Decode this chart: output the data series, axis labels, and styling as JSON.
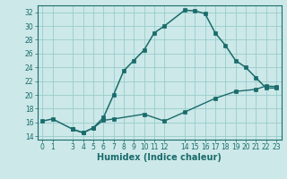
{
  "xlabel": "Humidex (Indice chaleur)",
  "bg_color": "#cce8e8",
  "line_color": "#1a6b6b",
  "grid_color": "#99cccc",
  "xlim": [
    -0.5,
    23.5
  ],
  "ylim": [
    13.5,
    33.0
  ],
  "xticks": [
    0,
    1,
    3,
    4,
    5,
    6,
    7,
    8,
    9,
    10,
    11,
    12,
    14,
    15,
    16,
    17,
    18,
    19,
    20,
    21,
    22,
    23
  ],
  "yticks": [
    14,
    16,
    18,
    20,
    22,
    24,
    26,
    28,
    30,
    32
  ],
  "curve1_x": [
    0,
    1,
    3,
    4,
    5,
    6,
    7,
    8,
    9,
    10,
    11,
    12,
    14,
    15,
    16,
    17,
    18,
    19,
    20,
    21,
    22,
    23
  ],
  "curve1_y": [
    16.2,
    16.5,
    15.0,
    14.5,
    15.2,
    16.7,
    20.0,
    23.5,
    25.0,
    26.5,
    29.0,
    30.0,
    32.3,
    32.2,
    31.8,
    29.0,
    27.2,
    25.0,
    24.0,
    22.5,
    21.0,
    21.0
  ],
  "curve2_x": [
    3,
    4,
    5,
    6,
    7,
    10,
    12,
    14,
    17,
    19,
    21,
    22,
    23
  ],
  "curve2_y": [
    15.0,
    14.5,
    15.2,
    16.3,
    16.5,
    17.2,
    16.2,
    17.5,
    19.5,
    20.5,
    20.8,
    21.3,
    21.2
  ],
  "xlabel_fontsize": 7,
  "tick_fontsize": 5.5,
  "linewidth1": 1.1,
  "linewidth2": 1.0,
  "markersize1": 2.8,
  "markersize2": 2.5
}
